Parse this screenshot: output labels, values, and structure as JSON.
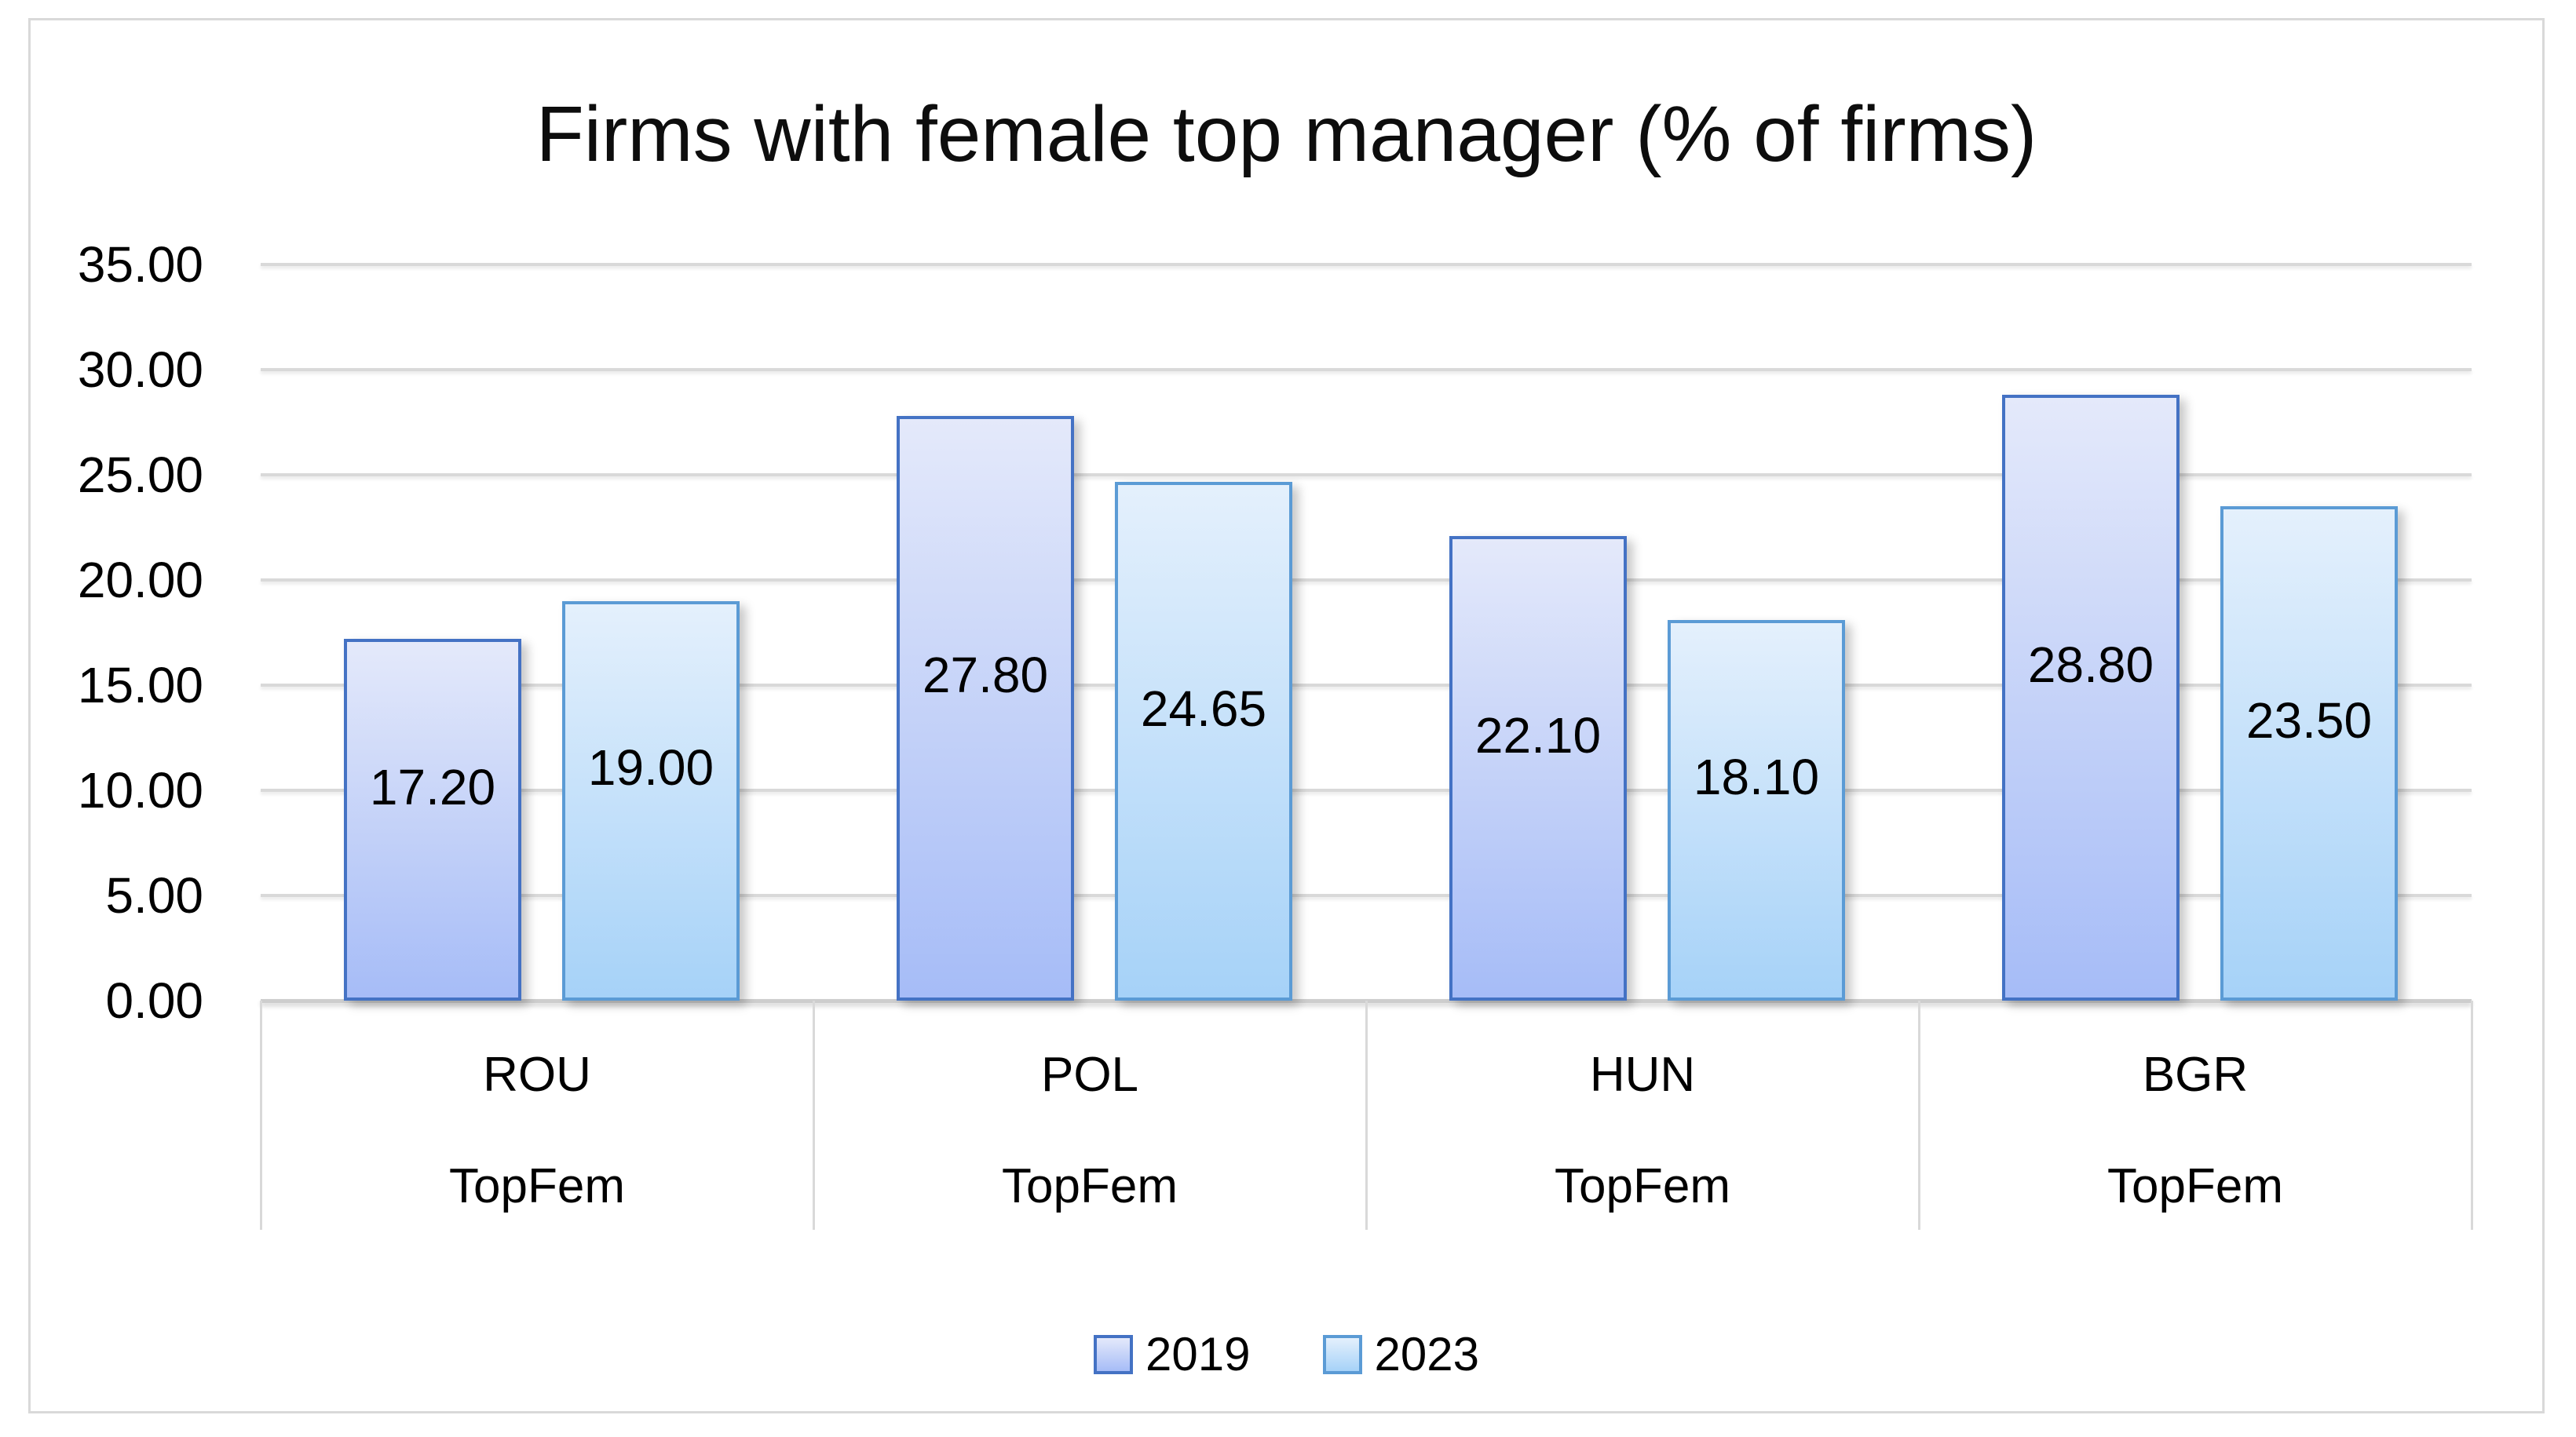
{
  "title": "Firms with female top manager (% of firms)",
  "chart_data": {
    "type": "bar",
    "categories": [
      "ROU",
      "POL",
      "HUN",
      "BGR"
    ],
    "sub_category_label": "TopFem",
    "series": [
      {
        "name": "2019",
        "values": [
          17.2,
          27.8,
          22.1,
          28.8
        ],
        "labels": [
          "17.20",
          "27.80",
          "22.10",
          "28.80"
        ],
        "border_color": "#4472c4",
        "fill_top": "#e4e9fa",
        "fill_bottom": "#a6bcf7"
      },
      {
        "name": "2023",
        "values": [
          19.0,
          24.65,
          18.1,
          23.5
        ],
        "labels": [
          "19.00",
          "24.65",
          "18.10",
          "23.50"
        ],
        "border_color": "#5b9bd5",
        "fill_top": "#e4f0fc",
        "fill_bottom": "#a6d2f8"
      }
    ],
    "ylim": [
      0,
      35
    ],
    "ytick_step": 5,
    "ytick_labels": [
      "0.00",
      "5.00",
      "10.00",
      "15.00",
      "20.00",
      "25.00",
      "30.00",
      "35.00"
    ],
    "grid": true,
    "legend_position": "bottom",
    "value_labels_position": "inside-center"
  },
  "colors": {
    "gridline": "#d9d9d9",
    "baseline": "#cdcdcd",
    "frame_border": "#d9d9d9",
    "text": "#000000",
    "background": "#ffffff"
  }
}
